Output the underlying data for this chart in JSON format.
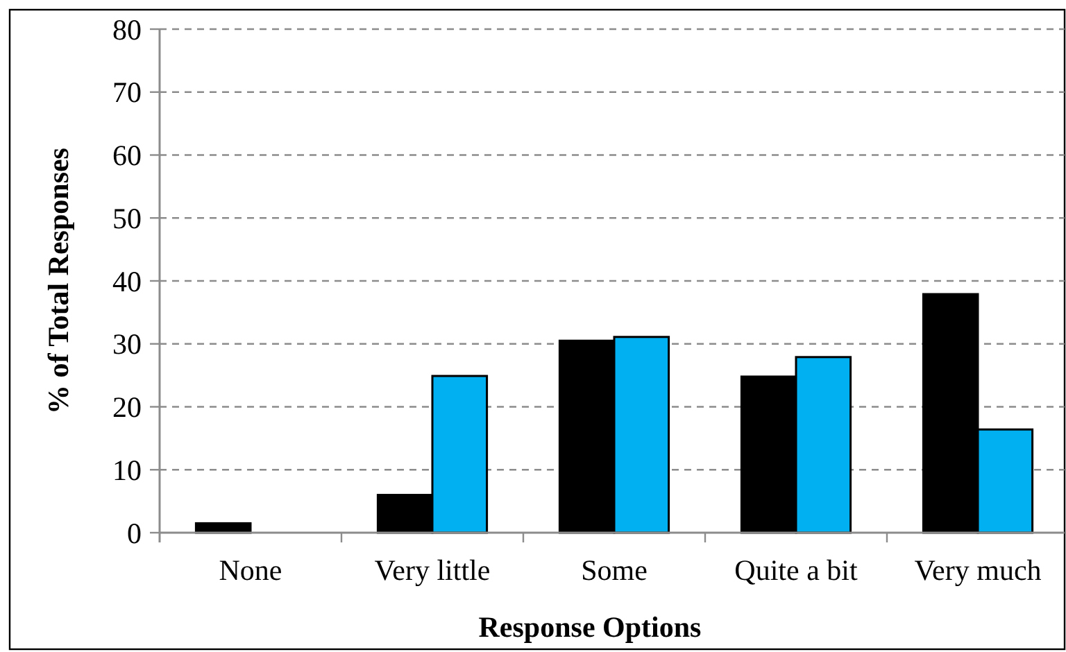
{
  "chart_data": {
    "type": "bar",
    "xlabel": "Response Options",
    "ylabel": "% of Total Responses",
    "categories": [
      "None",
      "Very little",
      "Some",
      "Quite a bit",
      "Very much"
    ],
    "series": [
      {
        "color": "#000000",
        "values": [
          1.5,
          6.0,
          30.5,
          24.8,
          37.9
        ]
      },
      {
        "color": "#00b0f0",
        "values": [
          0,
          24.9,
          31.1,
          27.9,
          16.4
        ]
      }
    ],
    "ylim": [
      0,
      80
    ],
    "yticks": [
      0,
      10,
      20,
      30,
      40,
      50,
      60,
      70,
      80
    ],
    "grid": "y"
  }
}
